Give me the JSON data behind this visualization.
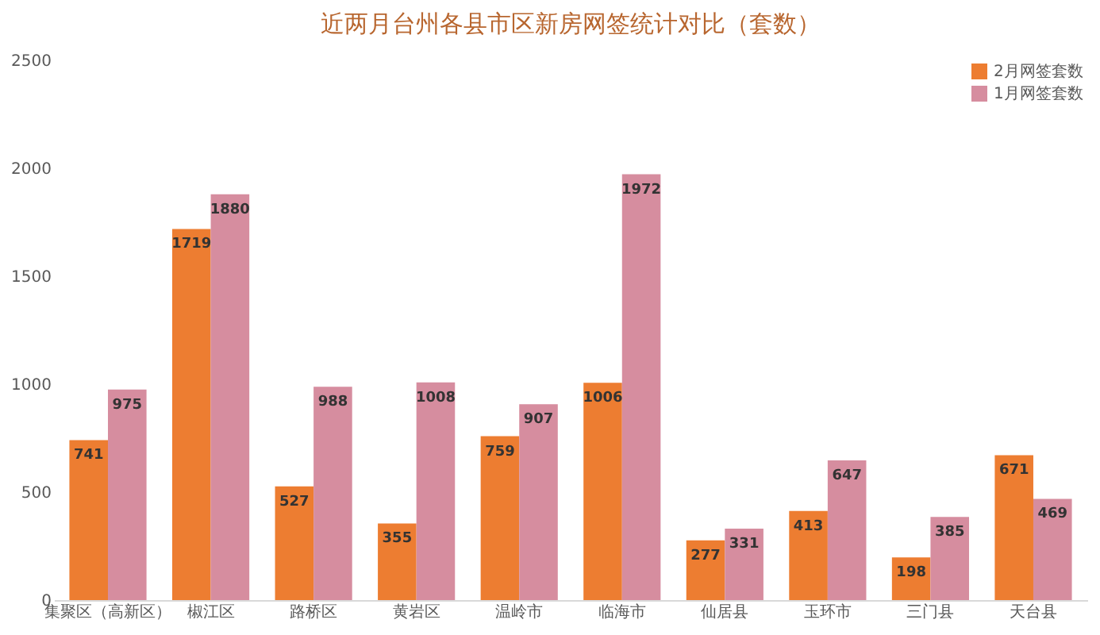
{
  "chart_data": {
    "type": "bar",
    "title": "近两月台州各县市区新房网签统计对比（套数）",
    "categories": [
      "集聚区（高新区）",
      "椒江区",
      "路桥区",
      "黄岩区",
      "温岭市",
      "临海市",
      "仙居县",
      "玉环市",
      "三门县",
      "天台县"
    ],
    "series": [
      {
        "name": "2月网签套数",
        "color": "#ed7d31",
        "values": [
          741,
          1719,
          527,
          355,
          759,
          1006,
          277,
          413,
          198,
          671
        ]
      },
      {
        "name": "1月网签套数",
        "color": "#d68d9f",
        "values": [
          975,
          1880,
          988,
          1008,
          907,
          1972,
          331,
          647,
          385,
          469
        ]
      }
    ],
    "ylim": [
      0,
      2500
    ],
    "yticks": [
      0,
      500,
      1000,
      1500,
      2000,
      2500
    ],
    "grid": false,
    "legend": "top right",
    "data_labels": true
  }
}
